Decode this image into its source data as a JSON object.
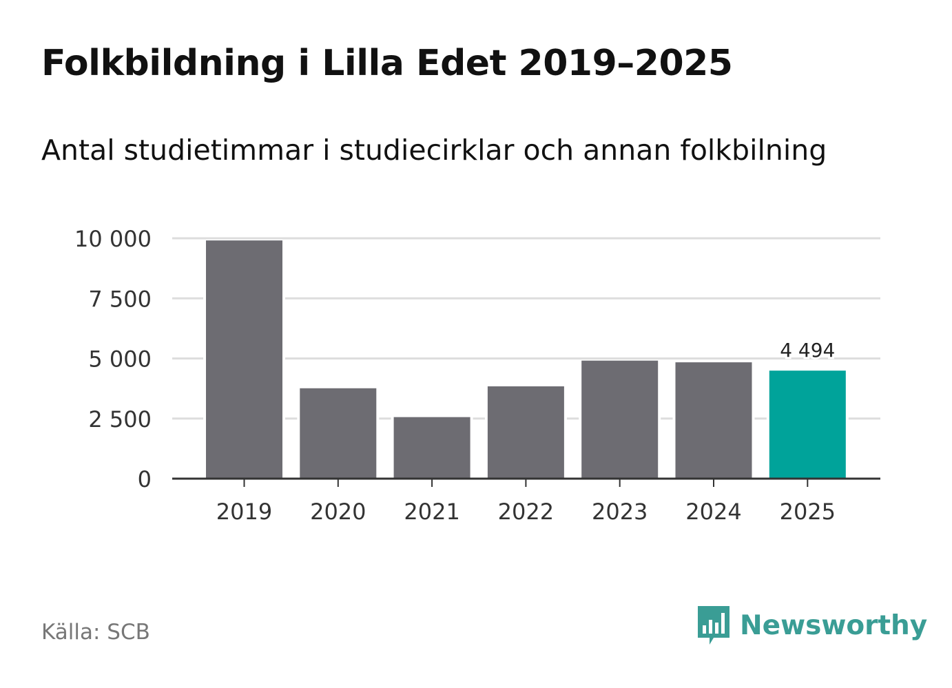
{
  "chart_data": {
    "type": "bar",
    "title": "Folkbildning i Lilla Edet 2019–2025",
    "subtitle": "Antal studietimmar i studiecirklar och annan folkbilning",
    "categories": [
      "2019",
      "2020",
      "2021",
      "2022",
      "2023",
      "2024",
      "2025"
    ],
    "values": [
      9910,
      3760,
      2560,
      3840,
      4910,
      4840,
      4494
    ],
    "ylim": [
      0,
      10000
    ],
    "yticks": [
      0,
      2500,
      5000,
      7500,
      10000
    ],
    "ytick_labels": [
      "0",
      "2 500",
      "5 000",
      "7 500",
      "10 000"
    ],
    "grid": true,
    "highlight_index": 6,
    "highlight_label": "4 494",
    "colors": {
      "bar": "#6d6c72",
      "highlight": "#00a39a",
      "grid": "#dddddd",
      "axis": "#333333"
    }
  },
  "footer": {
    "source": "Källa: SCB",
    "brand": "Newsworthy",
    "brand_color": "#3a9d95",
    "brand_icon": "newsworthy-logo-icon"
  }
}
